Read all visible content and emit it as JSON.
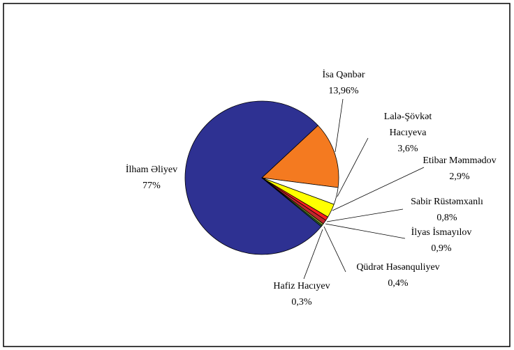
{
  "chart_data": {
    "type": "pie",
    "categories": [
      "İlham Əliyev",
      "İsa Qənbər",
      "Lalə-Şövkət Hacıyeva",
      "Etibar Məmmədov",
      "Sabir Rüstəmxanlı",
      "İlyas İsmayılov",
      "Qüdrət Həsənquliyev",
      "Hafiz Hacıyev"
    ],
    "values": [
      77,
      13.96,
      3.6,
      2.9,
      0.8,
      0.9,
      0.4,
      0.3
    ],
    "value_labels": [
      "77%",
      "13,96%",
      "3,6%",
      "2,9%",
      "0,8%",
      "0,9%",
      "0,4%",
      "0,3%"
    ],
    "colors": [
      "#2e3192",
      "#f47a20",
      "#ffffff",
      "#ffff00",
      "#ff2020",
      "#c0262e",
      "#8a9a2a",
      "#2a7a3a"
    ]
  }
}
